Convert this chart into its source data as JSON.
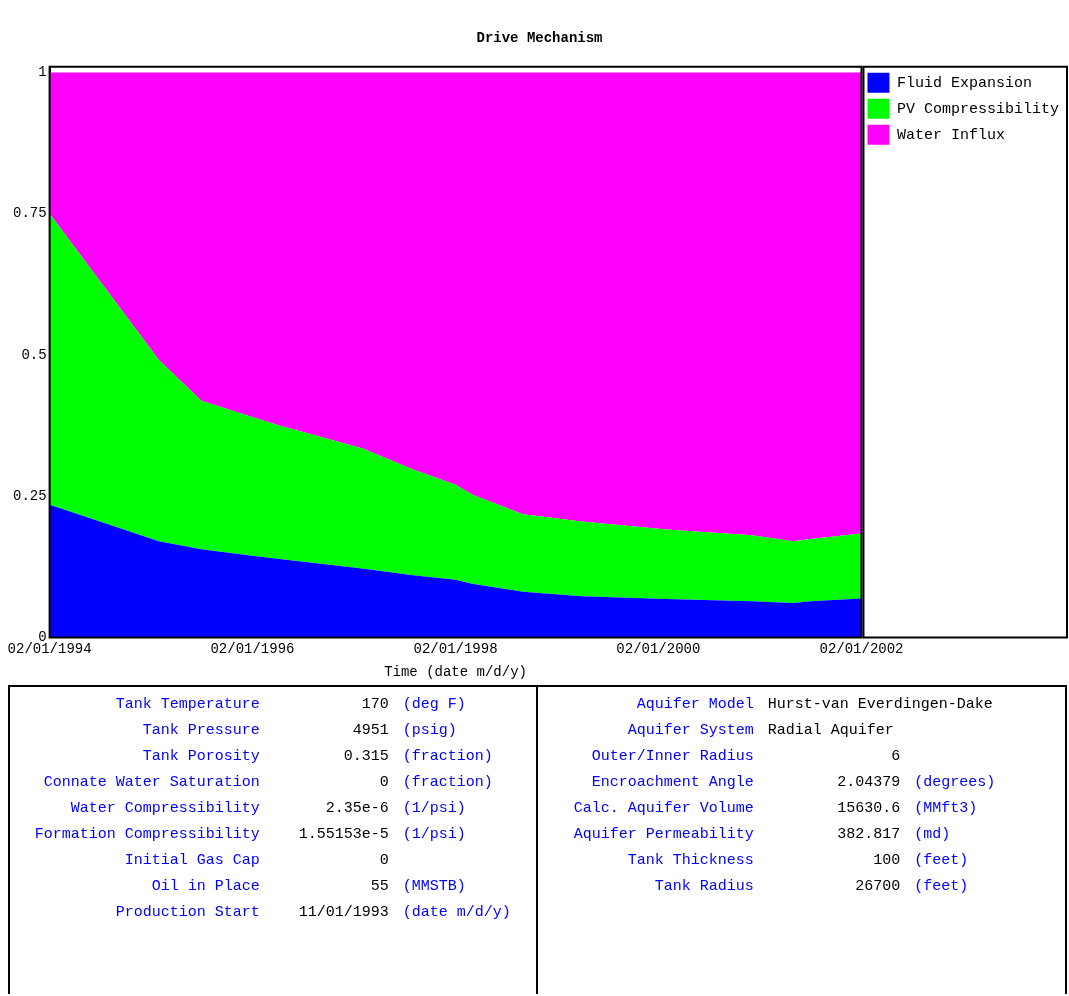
{
  "chart_data": [
    {
      "type": "area",
      "title": "Drive Mechanism",
      "xlabel": "Time (date m/d/y)",
      "stacked": true,
      "legend": "right",
      "x": [
        "1994-02-01",
        "1995-03-01",
        "1995-08-01",
        "1996-05-01",
        "1997-03-01",
        "1997-09-01",
        "1998-02-01",
        "1998-04-01",
        "1998-10-01",
        "1999-05-01",
        "2000-03-01",
        "2001-01-01",
        "2001-06-01",
        "2001-08-01",
        "2002-02-01"
      ],
      "series": [
        {
          "name": "Fluid Expansion",
          "color": "#0000ff",
          "values": [
            0.235,
            0.17,
            0.156,
            0.139,
            0.122,
            0.11,
            0.102,
            0.095,
            0.081,
            0.073,
            0.068,
            0.064,
            0.061,
            0.064,
            0.069
          ]
        },
        {
          "name": "PV Compressibility",
          "color": "#00ff00",
          "values": [
            0.515,
            0.321,
            0.263,
            0.237,
            0.213,
            0.187,
            0.168,
            0.158,
            0.137,
            0.132,
            0.123,
            0.117,
            0.109,
            0.11,
            0.115
          ]
        },
        {
          "name": "Water Influx",
          "color": "#ff00ff",
          "values": [
            0.25,
            0.509,
            0.581,
            0.624,
            0.665,
            0.703,
            0.73,
            0.747,
            0.782,
            0.795,
            0.809,
            0.819,
            0.83,
            0.826,
            0.816
          ]
        }
      ],
      "xlim": [
        "1994-02-01",
        "2002-02-01"
      ],
      "xticks": [
        {
          "value": "1994-02-01",
          "label": "02/01/1994"
        },
        {
          "value": "1996-02-01",
          "label": "02/01/1996"
        },
        {
          "value": "1998-02-01",
          "label": "02/01/1998"
        },
        {
          "value": "2000-02-01",
          "label": "02/01/2000"
        },
        {
          "value": "2002-02-01",
          "label": "02/01/2002"
        }
      ],
      "ylim": [
        0,
        1.01
      ],
      "yticks": [
        0,
        0.25,
        0.5,
        0.75,
        1
      ]
    },
    {
      "type": "other",
      "annotations": [
        "Tank Temperature  170  (deg F)",
        "Tank Pressure  4951  (psig)",
        "Tank Porosity  0.315  (fraction)",
        "Connate Water Saturation  0  (fraction)",
        "Water Compressibility  2.35e-6  (1/psi)",
        "Formation Compressibility  1.55153e-5  (1/psi)",
        "Initial Gas Cap  0",
        "Oil in Place  55  (MMSTB)",
        "Production Start  11/01/1993  (date m/d/y)"
      ]
    },
    {
      "type": "other",
      "annotations": [
        "Aquifer Model  Hurst-van Everdingen-Dake",
        "Aquifer System  Radial Aquifer",
        "Outer/Inner Radius  6",
        "Encroachment Angle  2.04379  (degrees)",
        "Calc. Aquifer Volume  15630.6  (MMft3)",
        "Aquifer Permeability  382.817  (md)",
        "Tank Thickness  100  (feet)",
        "Tank Radius  26700  (feet)"
      ]
    }
  ]
}
